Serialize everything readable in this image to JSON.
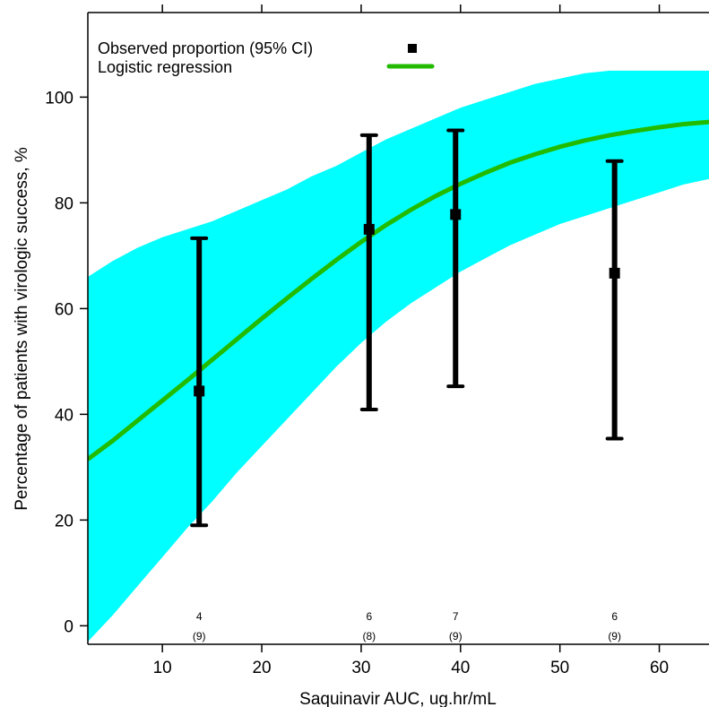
{
  "chart_data": {
    "type": "scatter",
    "xlabel": "Saquinavir AUC, ug.hr/mL",
    "ylabel": "Percentage of patients with virologic success, %",
    "xlim": [
      2.5,
      65
    ],
    "ylim": [
      -3.5,
      116
    ],
    "x_ticks": [
      10,
      20,
      30,
      40,
      50,
      60
    ],
    "y_ticks": [
      0,
      20,
      40,
      60,
      80,
      100
    ],
    "top_ticks": [
      10,
      20,
      30,
      40,
      50,
      60
    ],
    "colors": {
      "band": "#00ffff",
      "curve": "#22bb00",
      "points": "#000000"
    },
    "legend": {
      "placement": "top-left",
      "entries": [
        {
          "label": "Observed proportion (95% CI)",
          "symbol": "square"
        },
        {
          "label": "Logistic regression",
          "symbol": "line"
        }
      ]
    },
    "observed": [
      {
        "x": 13.7,
        "y": 44.4,
        "lower": 19,
        "upper": 73.3,
        "count": "4",
        "n": "(9)"
      },
      {
        "x": 30.8,
        "y": 75.0,
        "lower": 40.9,
        "upper": 92.8,
        "count": "6",
        "n": "(8)"
      },
      {
        "x": 39.5,
        "y": 77.8,
        "lower": 45.3,
        "upper": 93.7,
        "count": "7",
        "n": "(9)"
      },
      {
        "x": 55.5,
        "y": 66.7,
        "lower": 35.4,
        "upper": 87.9,
        "count": "6",
        "n": "(9)"
      }
    ],
    "logistic_curve": {
      "x": [
        2.5,
        5,
        7.5,
        10,
        12.5,
        15,
        17.5,
        20,
        22.5,
        25,
        27.5,
        30,
        32.5,
        35,
        37.5,
        40,
        42.5,
        45,
        47.5,
        50,
        52.5,
        55,
        57.5,
        60,
        62.5,
        65
      ],
      "y": [
        31.5,
        35.0,
        38.8,
        42.6,
        46.4,
        50.3,
        54.2,
        58.1,
        61.9,
        65.6,
        69.2,
        72.6,
        75.8,
        78.7,
        81.3,
        83.6,
        85.7,
        87.6,
        89.2,
        90.6,
        91.8,
        92.8,
        93.6,
        94.3,
        94.9,
        95.3
      ]
    },
    "confidence_band": {
      "x": [
        2.5,
        5,
        7.5,
        10,
        12.5,
        15,
        17.5,
        20,
        22.5,
        25,
        27.5,
        30,
        32.5,
        35,
        37.5,
        40,
        42.5,
        45,
        47.5,
        50,
        52.5,
        55,
        57.5,
        60,
        62.5,
        65
      ],
      "upper": [
        66,
        69,
        71.5,
        73.5,
        75,
        76.5,
        78.5,
        80.5,
        82.5,
        85,
        87,
        89.5,
        92,
        94,
        96,
        98,
        99.5,
        101,
        102.5,
        103.5,
        104.5,
        105,
        105,
        105,
        105,
        105
      ],
      "lower": [
        -3,
        2,
        7.5,
        13,
        18.5,
        23.5,
        29,
        34,
        39,
        44,
        49,
        53.5,
        57.5,
        61,
        64,
        67,
        69.5,
        72,
        74,
        76,
        77.5,
        79,
        80.5,
        82,
        83.5,
        84.5
      ]
    }
  }
}
